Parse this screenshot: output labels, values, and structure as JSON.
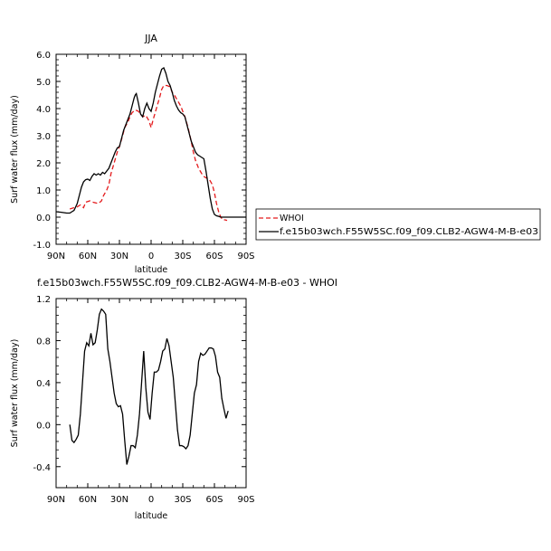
{
  "colors": {
    "whoi": "#e41a1c",
    "model": "#000000"
  },
  "chart_data": [
    {
      "type": "line",
      "title": "JJA",
      "xlabel": "latitude",
      "ylabel": "Surf water flux (mm/day)",
      "xlim": [
        90,
        -90
      ],
      "ylim": [
        -1,
        6
      ],
      "xticks": [
        90,
        60,
        30,
        0,
        -30,
        -60,
        -90
      ],
      "xtick_labels": [
        "90N",
        "60N",
        "30N",
        "0",
        "30S",
        "60S",
        "90S"
      ],
      "yticks": [
        -1,
        0,
        1,
        2,
        3,
        4,
        5,
        6
      ],
      "ytick_labels": [
        "-1.0",
        "0.0",
        "1.0",
        "2.0",
        "3.0",
        "4.0",
        "5.0",
        "6.0"
      ],
      "legend_position": "right",
      "series": [
        {
          "name": "WHOI",
          "style": "dashed",
          "color": "#e41a1c",
          "x": [
            77,
            73,
            70,
            67,
            64,
            62,
            58,
            55,
            50,
            47,
            45,
            42,
            40,
            38,
            35,
            32,
            30,
            27,
            25,
            22,
            20,
            18,
            15,
            12,
            10,
            8,
            5,
            2,
            0,
            -2,
            -5,
            -8,
            -10,
            -12,
            -15,
            -18,
            -20,
            -22,
            -25,
            -28,
            -30,
            -32,
            -35,
            -38,
            -40,
            -42,
            -45,
            -48,
            -50,
            -52,
            -55,
            -58,
            -60,
            -62,
            -64,
            -66,
            -68,
            -70,
            -72
          ],
          "y": [
            0.3,
            0.35,
            0.38,
            0.45,
            0.35,
            0.55,
            0.6,
            0.55,
            0.5,
            0.6,
            0.8,
            1.0,
            1.2,
            1.6,
            2.0,
            2.4,
            2.6,
            3.0,
            3.3,
            3.5,
            3.7,
            3.85,
            3.95,
            3.9,
            3.8,
            3.7,
            3.75,
            3.55,
            3.3,
            3.6,
            4.0,
            4.4,
            4.7,
            4.85,
            4.85,
            4.8,
            4.6,
            4.5,
            4.3,
            4.1,
            3.9,
            3.7,
            3.3,
            2.8,
            2.4,
            2.1,
            1.8,
            1.6,
            1.5,
            1.45,
            1.4,
            1.2,
            0.9,
            0.5,
            0.2,
            0.0,
            -0.1,
            -0.1,
            -0.12
          ]
        },
        {
          "name": "f.e15b03wch.F55W5SC.f09_f09.CLB2-AGW4-M-B-e03",
          "style": "solid",
          "color": "#000000",
          "x": [
            90,
            85,
            80,
            77,
            75,
            73,
            70,
            68,
            66,
            64,
            62,
            60,
            58,
            56,
            54,
            52,
            50,
            48,
            46,
            44,
            42,
            40,
            38,
            36,
            34,
            32,
            30,
            28,
            26,
            24,
            22,
            20,
            18,
            16,
            15,
            14,
            12,
            10,
            8,
            6,
            4,
            2,
            0,
            -2,
            -4,
            -6,
            -8,
            -10,
            -12,
            -14,
            -16,
            -18,
            -20,
            -22,
            -24,
            -26,
            -28,
            -30,
            -32,
            -34,
            -36,
            -38,
            -40,
            -42,
            -44,
            -46,
            -48,
            -50,
            -52,
            -54,
            -56,
            -58,
            -60,
            -62,
            -64,
            -66,
            -68,
            -70,
            -72,
            -74,
            -76,
            -80,
            -90
          ],
          "y": [
            0.2,
            0.18,
            0.15,
            0.15,
            0.2,
            0.25,
            0.5,
            0.8,
            1.1,
            1.3,
            1.38,
            1.4,
            1.35,
            1.5,
            1.6,
            1.55,
            1.6,
            1.55,
            1.65,
            1.6,
            1.7,
            1.8,
            2.0,
            2.2,
            2.4,
            2.55,
            2.6,
            2.9,
            3.2,
            3.4,
            3.6,
            3.8,
            4.1,
            4.4,
            4.5,
            4.55,
            4.2,
            3.8,
            3.7,
            4.0,
            4.2,
            4.0,
            3.9,
            4.2,
            4.6,
            4.9,
            5.2,
            5.45,
            5.5,
            5.3,
            5.0,
            4.85,
            4.6,
            4.3,
            4.1,
            3.95,
            3.85,
            3.8,
            3.7,
            3.4,
            3.1,
            2.8,
            2.6,
            2.4,
            2.3,
            2.25,
            2.2,
            2.15,
            1.7,
            1.2,
            0.7,
            0.3,
            0.1,
            0.05,
            0.03,
            0.0,
            0.0,
            0.0,
            0.0,
            0.0,
            0.0,
            0.0,
            0.0
          ]
        }
      ]
    },
    {
      "type": "line",
      "title": "f.e15b03wch.F55W5SC.f09_f09.CLB2-AGW4-M-B-e03 - WHOI",
      "xlabel": "latitude",
      "ylabel": "Surf water flux (mm/day)",
      "xlim": [
        90,
        -90
      ],
      "ylim": [
        -0.6,
        1.2
      ],
      "xticks": [
        90,
        60,
        30,
        0,
        -30,
        -60,
        -90
      ],
      "xtick_labels": [
        "90N",
        "60N",
        "30N",
        "0",
        "30S",
        "60S",
        "90S"
      ],
      "yticks": [
        -0.4,
        0.0,
        0.4,
        0.8,
        1.2
      ],
      "ytick_labels": [
        "-0.4",
        "0.0",
        "0.4",
        "0.8",
        "1.2"
      ],
      "series": [
        {
          "style": "solid",
          "color": "#000000",
          "x": [
            77,
            75,
            73,
            71,
            69,
            67,
            65,
            63,
            61,
            59,
            57,
            55,
            53,
            51,
            49,
            47,
            45,
            43,
            41,
            39,
            37,
            35,
            33,
            31,
            29,
            27,
            25,
            23,
            21,
            19,
            17,
            15,
            13,
            11,
            9,
            7,
            5,
            3,
            1,
            -1,
            -3,
            -5,
            -7,
            -9,
            -11,
            -13,
            -15,
            -17,
            -19,
            -21,
            -23,
            -25,
            -27,
            -29,
            -31,
            -33,
            -35,
            -37,
            -39,
            -41,
            -43,
            -45,
            -47,
            -49,
            -51,
            -53,
            -55,
            -57,
            -59,
            -61,
            -63,
            -65,
            -67,
            -69,
            -71,
            -73
          ],
          "y": [
            0.0,
            -0.15,
            -0.17,
            -0.14,
            -0.1,
            0.1,
            0.4,
            0.7,
            0.78,
            0.75,
            0.87,
            0.76,
            0.78,
            0.9,
            1.05,
            1.1,
            1.08,
            1.05,
            0.72,
            0.6,
            0.45,
            0.3,
            0.2,
            0.17,
            0.18,
            0.1,
            -0.15,
            -0.38,
            -0.3,
            -0.2,
            -0.2,
            -0.22,
            -0.1,
            0.1,
            0.4,
            0.7,
            0.35,
            0.12,
            0.05,
            0.3,
            0.5,
            0.5,
            0.52,
            0.6,
            0.7,
            0.72,
            0.82,
            0.75,
            0.6,
            0.45,
            0.2,
            -0.05,
            -0.2,
            -0.2,
            -0.21,
            -0.23,
            -0.2,
            -0.1,
            0.1,
            0.3,
            0.38,
            0.6,
            0.68,
            0.66,
            0.67,
            0.7,
            0.73,
            0.73,
            0.72,
            0.65,
            0.5,
            0.45,
            0.25,
            0.15,
            0.06,
            0.13
          ]
        }
      ]
    }
  ]
}
